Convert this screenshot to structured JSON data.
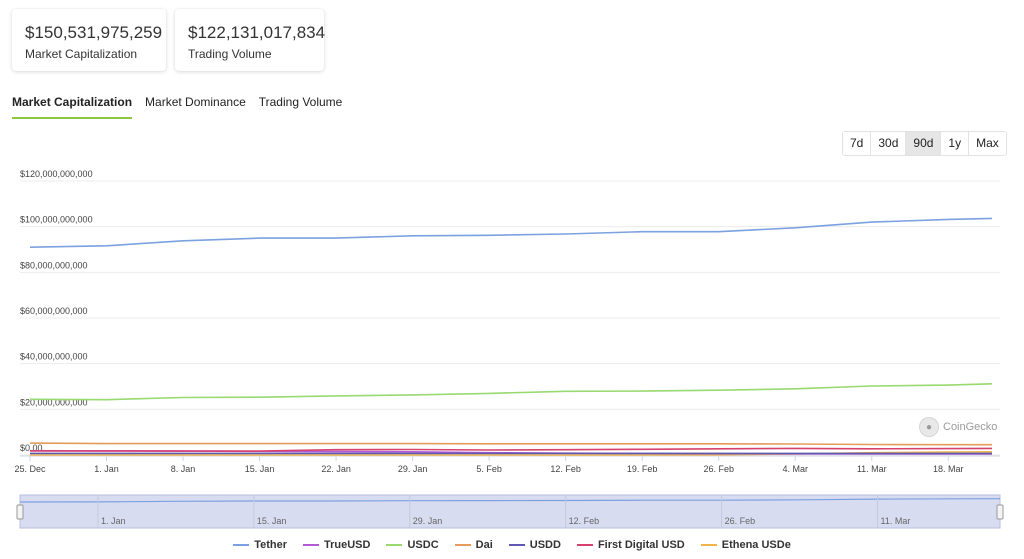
{
  "stats": {
    "market_cap": {
      "value": "$150,531,975,259",
      "label": "Market Capitalization"
    },
    "trading_volume": {
      "value": "$122,131,017,834",
      "label": "Trading Volume"
    }
  },
  "tabs": [
    {
      "label": "Market Capitalization",
      "active": true
    },
    {
      "label": "Market Dominance",
      "active": false
    },
    {
      "label": "Trading Volume",
      "active": false
    }
  ],
  "ranges": [
    {
      "label": "7d",
      "active": false
    },
    {
      "label": "30d",
      "active": false
    },
    {
      "label": "90d",
      "active": true
    },
    {
      "label": "1y",
      "active": false
    },
    {
      "label": "Max",
      "active": false
    }
  ],
  "watermark": "CoinGecko",
  "colors": {
    "accent": "#8dc63f",
    "navigator_fill": "#d8dcf0"
  },
  "chart_data": {
    "type": "line",
    "x": [
      "2023-12-25",
      "2024-01-01",
      "2024-01-08",
      "2024-01-15",
      "2024-01-22",
      "2024-01-29",
      "2024-02-05",
      "2024-02-12",
      "2024-02-19",
      "2024-02-26",
      "2024-03-04",
      "2024-03-11",
      "2024-03-18",
      "2024-03-22"
    ],
    "x_tick_labels": [
      "25. Dec",
      "1. Jan",
      "8. Jan",
      "15. Jan",
      "22. Jan",
      "29. Jan",
      "5. Feb",
      "12. Feb",
      "19. Feb",
      "26. Feb",
      "4. Mar",
      "11. Mar",
      "18. Mar"
    ],
    "navigator_tick_labels": [
      "1. Jan",
      "15. Jan",
      "29. Jan",
      "12. Feb",
      "26. Feb",
      "11. Mar"
    ],
    "y_ticks": [
      "$0.00",
      "$20,000,000,000",
      "$40,000,000,000",
      "$60,000,000,000",
      "$80,000,000,000",
      "$100,000,000,000",
      "$120,000,000,000"
    ],
    "ylim": [
      0,
      120000000000
    ],
    "grid": true,
    "legend_position": "bottom",
    "series": [
      {
        "name": "Tether",
        "color": "#7ca1e0",
        "values": [
          91000000000,
          91600000000,
          93800000000,
          95000000000,
          95000000000,
          96000000000,
          96200000000,
          96800000000,
          97800000000,
          97800000000,
          99500000000,
          102000000000,
          103200000000,
          103600000000
        ]
      },
      {
        "name": "TrueUSD",
        "color": "#b15ad6",
        "values": [
          1900000000,
          1800000000,
          1700000000,
          1600000000,
          1500000000,
          1400000000,
          1000000000,
          800000000,
          650000000,
          560000000,
          520000000,
          500000000,
          500000000,
          500000000
        ]
      },
      {
        "name": "USDC",
        "color": "#98d970",
        "values": [
          24400000000,
          24200000000,
          25200000000,
          25300000000,
          25900000000,
          26300000000,
          27000000000,
          27900000000,
          28000000000,
          28400000000,
          29000000000,
          30200000000,
          30600000000,
          31200000000
        ]
      },
      {
        "name": "Dai",
        "color": "#e59b5a",
        "values": [
          5200000000,
          5000000000,
          5000000000,
          5000000000,
          5000000000,
          5000000000,
          4900000000,
          4900000000,
          4900000000,
          4900000000,
          4800000000,
          4600000000,
          4500000000,
          4500000000
        ]
      },
      {
        "name": "USDD",
        "color": "#5f58b0",
        "values": [
          720000000,
          720000000,
          720000000,
          720000000,
          720000000,
          720000000,
          720000000,
          720000000,
          720000000,
          720000000,
          720000000,
          720000000,
          720000000,
          720000000
        ]
      },
      {
        "name": "First Digital USD",
        "color": "#d6426c",
        "values": [
          1800000000,
          1800000000,
          1700000000,
          1700000000,
          2300000000,
          2400000000,
          2200000000,
          2300000000,
          2500000000,
          2700000000,
          2900000000,
          2700000000,
          2800000000,
          2900000000
        ]
      },
      {
        "name": "Ethena USDe",
        "color": "#f0b54a",
        "values": [
          0,
          0,
          0,
          0,
          0,
          0,
          0,
          0,
          0,
          100000000,
          500000000,
          1000000000,
          1300000000,
          1400000000
        ]
      }
    ]
  }
}
